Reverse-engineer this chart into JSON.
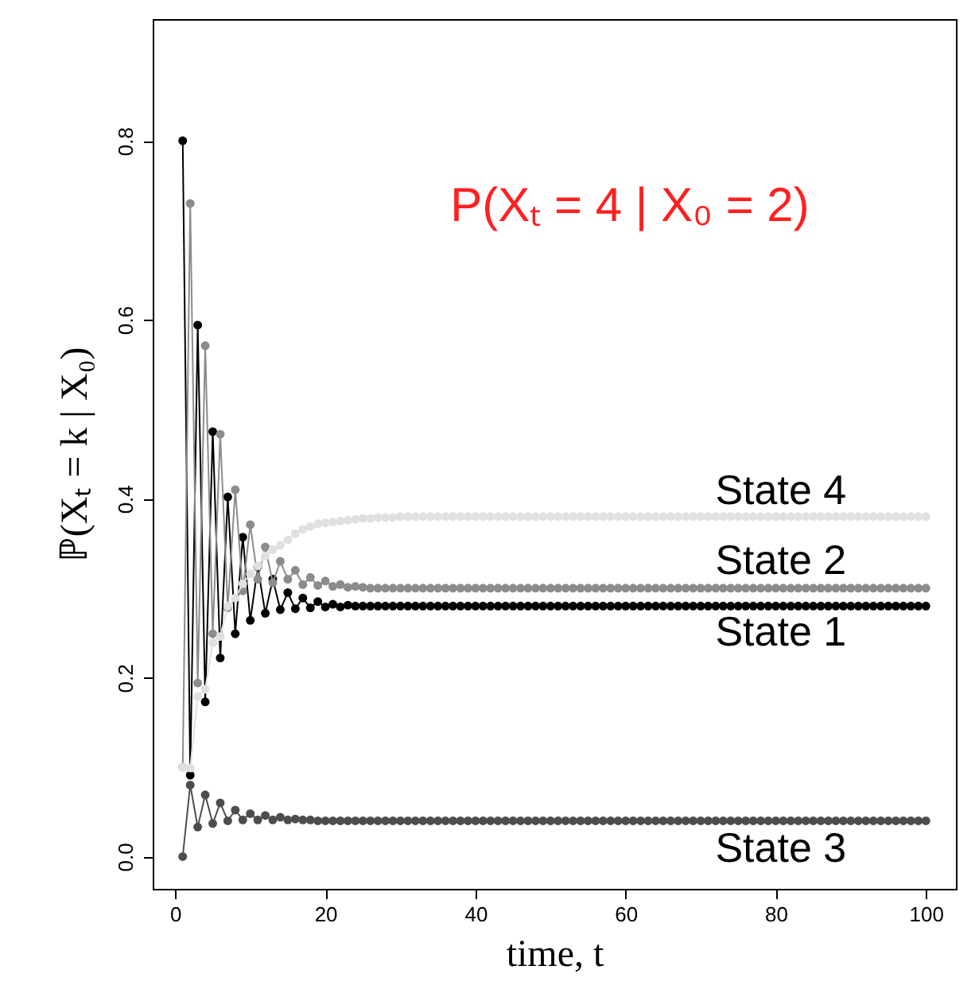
{
  "chart_data": {
    "type": "line",
    "xlabel": "time, t",
    "ylabel": "ℙ(Xₜ = k | X₀)",
    "annotations": [
      "P(Xₜ = 4 | X₀ = 2)"
    ],
    "x": [
      1,
      2,
      3,
      4,
      5,
      6,
      7,
      8,
      9,
      10,
      11,
      12,
      13,
      14,
      15,
      16,
      17,
      18,
      19,
      20,
      21,
      22,
      23,
      24,
      25,
      26,
      27,
      28,
      29,
      30,
      31,
      32,
      33,
      34,
      35,
      36,
      37,
      38,
      39,
      40,
      41,
      42,
      43,
      44,
      45,
      46,
      47,
      48,
      49,
      50,
      51,
      52,
      53,
      54,
      55,
      56,
      57,
      58,
      59,
      60,
      61,
      62,
      63,
      64,
      65,
      66,
      67,
      68,
      69,
      70,
      71,
      72,
      73,
      74,
      75,
      76,
      77,
      78,
      79,
      80,
      81,
      82,
      83,
      84,
      85,
      86,
      87,
      88,
      89,
      90,
      91,
      92,
      93,
      94,
      95,
      96,
      97,
      98,
      99,
      100
    ],
    "series": [
      {
        "name": "State 1",
        "color": "#000000",
        "values": [
          0.8,
          0.091,
          0.594,
          0.173,
          0.475,
          0.222,
          0.402,
          0.249,
          0.357,
          0.264,
          0.324,
          0.272,
          0.31,
          0.276,
          0.295,
          0.277,
          0.289,
          0.278,
          0.285,
          0.279,
          0.282,
          0.279,
          0.281,
          0.28,
          0.28,
          0.28,
          0.28,
          0.28,
          0.28,
          0.28,
          0.28,
          0.28,
          0.28,
          0.28,
          0.28,
          0.28,
          0.28,
          0.28,
          0.28,
          0.28,
          0.28,
          0.28,
          0.28,
          0.28,
          0.28,
          0.28,
          0.28,
          0.28,
          0.28,
          0.28,
          0.28,
          0.28,
          0.28,
          0.28,
          0.28,
          0.28,
          0.28,
          0.28,
          0.28,
          0.28,
          0.28,
          0.28,
          0.28,
          0.28,
          0.28,
          0.28,
          0.28,
          0.28,
          0.28,
          0.28,
          0.28,
          0.28,
          0.28,
          0.28,
          0.28,
          0.28,
          0.28,
          0.28,
          0.28,
          0.28,
          0.28,
          0.28,
          0.28,
          0.28,
          0.28,
          0.28,
          0.28,
          0.28,
          0.28,
          0.28,
          0.28,
          0.28,
          0.28,
          0.28,
          0.28,
          0.28,
          0.28,
          0.28,
          0.28,
          0.28
        ]
      },
      {
        "name": "State 2",
        "color": "#8c8c8c",
        "values": [
          0.1,
          0.73,
          0.194,
          0.571,
          0.249,
          0.472,
          0.278,
          0.41,
          0.297,
          0.371,
          0.31,
          0.346,
          0.306,
          0.33,
          0.31,
          0.32,
          0.304,
          0.312,
          0.303,
          0.308,
          0.302,
          0.304,
          0.301,
          0.302,
          0.301,
          0.3,
          0.3,
          0.3,
          0.3,
          0.3,
          0.3,
          0.3,
          0.3,
          0.3,
          0.3,
          0.3,
          0.3,
          0.3,
          0.3,
          0.3,
          0.3,
          0.3,
          0.3,
          0.3,
          0.3,
          0.3,
          0.3,
          0.3,
          0.3,
          0.3,
          0.3,
          0.3,
          0.3,
          0.3,
          0.3,
          0.3,
          0.3,
          0.3,
          0.3,
          0.3,
          0.3,
          0.3,
          0.3,
          0.3,
          0.3,
          0.3,
          0.3,
          0.3,
          0.3,
          0.3,
          0.3,
          0.3,
          0.3,
          0.3,
          0.3,
          0.3,
          0.3,
          0.3,
          0.3,
          0.3,
          0.3,
          0.3,
          0.3,
          0.3,
          0.3,
          0.3,
          0.3,
          0.3,
          0.3,
          0.3,
          0.3,
          0.3,
          0.3,
          0.3,
          0.3,
          0.3,
          0.3,
          0.3,
          0.3,
          0.3
        ]
      },
      {
        "name": "State 3",
        "color": "#4d4d4d",
        "values": [
          0,
          0.08,
          0.033,
          0.069,
          0.037,
          0.06,
          0.04,
          0.052,
          0.041,
          0.048,
          0.041,
          0.046,
          0.041,
          0.044,
          0.041,
          0.042,
          0.041,
          0.041,
          0.04,
          0.04,
          0.04,
          0.04,
          0.04,
          0.04,
          0.04,
          0.04,
          0.04,
          0.04,
          0.04,
          0.04,
          0.04,
          0.04,
          0.04,
          0.04,
          0.04,
          0.04,
          0.04,
          0.04,
          0.04,
          0.04,
          0.04,
          0.04,
          0.04,
          0.04,
          0.04,
          0.04,
          0.04,
          0.04,
          0.04,
          0.04,
          0.04,
          0.04,
          0.04,
          0.04,
          0.04,
          0.04,
          0.04,
          0.04,
          0.04,
          0.04,
          0.04,
          0.04,
          0.04,
          0.04,
          0.04,
          0.04,
          0.04,
          0.04,
          0.04,
          0.04,
          0.04,
          0.04,
          0.04,
          0.04,
          0.04,
          0.04,
          0.04,
          0.04,
          0.04,
          0.04,
          0.04,
          0.04,
          0.04,
          0.04,
          0.04,
          0.04,
          0.04,
          0.04,
          0.04,
          0.04,
          0.04,
          0.04,
          0.04,
          0.04,
          0.04,
          0.04,
          0.04,
          0.04,
          0.04,
          0.04
        ]
      },
      {
        "name": "State 4",
        "color": "#e0e0e0",
        "values": [
          0.1,
          0.099,
          0.179,
          0.187,
          0.239,
          0.246,
          0.28,
          0.289,
          0.305,
          0.316,
          0.325,
          0.336,
          0.343,
          0.348,
          0.354,
          0.361,
          0.366,
          0.369,
          0.372,
          0.373,
          0.374,
          0.375,
          0.376,
          0.377,
          0.378,
          0.378,
          0.379,
          0.379,
          0.379,
          0.38,
          0.38,
          0.38,
          0.38,
          0.38,
          0.38,
          0.38,
          0.38,
          0.38,
          0.38,
          0.38,
          0.38,
          0.38,
          0.38,
          0.38,
          0.38,
          0.38,
          0.38,
          0.38,
          0.38,
          0.38,
          0.38,
          0.38,
          0.38,
          0.38,
          0.38,
          0.38,
          0.38,
          0.38,
          0.38,
          0.38,
          0.38,
          0.38,
          0.38,
          0.38,
          0.38,
          0.38,
          0.38,
          0.38,
          0.38,
          0.38,
          0.38,
          0.38,
          0.38,
          0.38,
          0.38,
          0.38,
          0.38,
          0.38,
          0.38,
          0.38,
          0.38,
          0.38,
          0.38,
          0.38,
          0.38,
          0.38,
          0.38,
          0.38,
          0.38,
          0.38,
          0.38,
          0.38,
          0.38,
          0.38,
          0.38,
          0.38,
          0.38,
          0.38,
          0.38,
          0.38
        ]
      }
    ],
    "xlim": [
      -3,
      104
    ],
    "ylim": [
      -0.036,
      0.936
    ],
    "xticks": [
      0,
      20,
      40,
      60,
      80,
      100
    ],
    "yticks": [
      {
        "value": 0,
        "label": "0.0"
      },
      0.2,
      0.4,
      0.6,
      0.8
    ],
    "marker": "circle",
    "line_style": "solid",
    "grid": false,
    "legend": false
  }
}
